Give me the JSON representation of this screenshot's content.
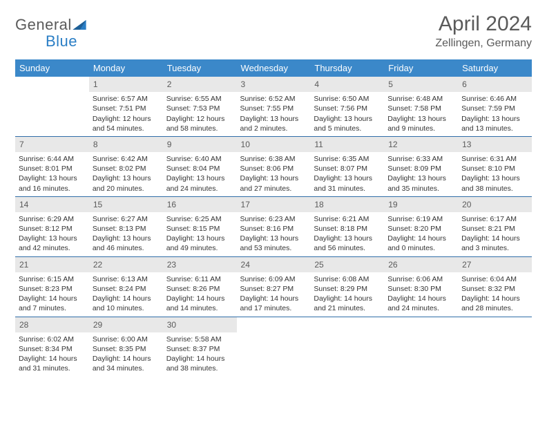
{
  "logo": {
    "text1": "General",
    "text2": "Blue"
  },
  "title": "April 2024",
  "location": "Zellingen, Germany",
  "colors": {
    "header_bg": "#3b88c9",
    "border": "#2f6da8",
    "daynum_bg": "#e8e8e8",
    "text_muted": "#5a5a5a"
  },
  "weekdays": [
    "Sunday",
    "Monday",
    "Tuesday",
    "Wednesday",
    "Thursday",
    "Friday",
    "Saturday"
  ],
  "weeks": [
    [
      {
        "day": "",
        "sunrise": "",
        "sunset": "",
        "daylight": ""
      },
      {
        "day": "1",
        "sunrise": "Sunrise: 6:57 AM",
        "sunset": "Sunset: 7:51 PM",
        "daylight": "Daylight: 12 hours and 54 minutes."
      },
      {
        "day": "2",
        "sunrise": "Sunrise: 6:55 AM",
        "sunset": "Sunset: 7:53 PM",
        "daylight": "Daylight: 12 hours and 58 minutes."
      },
      {
        "day": "3",
        "sunrise": "Sunrise: 6:52 AM",
        "sunset": "Sunset: 7:55 PM",
        "daylight": "Daylight: 13 hours and 2 minutes."
      },
      {
        "day": "4",
        "sunrise": "Sunrise: 6:50 AM",
        "sunset": "Sunset: 7:56 PM",
        "daylight": "Daylight: 13 hours and 5 minutes."
      },
      {
        "day": "5",
        "sunrise": "Sunrise: 6:48 AM",
        "sunset": "Sunset: 7:58 PM",
        "daylight": "Daylight: 13 hours and 9 minutes."
      },
      {
        "day": "6",
        "sunrise": "Sunrise: 6:46 AM",
        "sunset": "Sunset: 7:59 PM",
        "daylight": "Daylight: 13 hours and 13 minutes."
      }
    ],
    [
      {
        "day": "7",
        "sunrise": "Sunrise: 6:44 AM",
        "sunset": "Sunset: 8:01 PM",
        "daylight": "Daylight: 13 hours and 16 minutes."
      },
      {
        "day": "8",
        "sunrise": "Sunrise: 6:42 AM",
        "sunset": "Sunset: 8:02 PM",
        "daylight": "Daylight: 13 hours and 20 minutes."
      },
      {
        "day": "9",
        "sunrise": "Sunrise: 6:40 AM",
        "sunset": "Sunset: 8:04 PM",
        "daylight": "Daylight: 13 hours and 24 minutes."
      },
      {
        "day": "10",
        "sunrise": "Sunrise: 6:38 AM",
        "sunset": "Sunset: 8:06 PM",
        "daylight": "Daylight: 13 hours and 27 minutes."
      },
      {
        "day": "11",
        "sunrise": "Sunrise: 6:35 AM",
        "sunset": "Sunset: 8:07 PM",
        "daylight": "Daylight: 13 hours and 31 minutes."
      },
      {
        "day": "12",
        "sunrise": "Sunrise: 6:33 AM",
        "sunset": "Sunset: 8:09 PM",
        "daylight": "Daylight: 13 hours and 35 minutes."
      },
      {
        "day": "13",
        "sunrise": "Sunrise: 6:31 AM",
        "sunset": "Sunset: 8:10 PM",
        "daylight": "Daylight: 13 hours and 38 minutes."
      }
    ],
    [
      {
        "day": "14",
        "sunrise": "Sunrise: 6:29 AM",
        "sunset": "Sunset: 8:12 PM",
        "daylight": "Daylight: 13 hours and 42 minutes."
      },
      {
        "day": "15",
        "sunrise": "Sunrise: 6:27 AM",
        "sunset": "Sunset: 8:13 PM",
        "daylight": "Daylight: 13 hours and 46 minutes."
      },
      {
        "day": "16",
        "sunrise": "Sunrise: 6:25 AM",
        "sunset": "Sunset: 8:15 PM",
        "daylight": "Daylight: 13 hours and 49 minutes."
      },
      {
        "day": "17",
        "sunrise": "Sunrise: 6:23 AM",
        "sunset": "Sunset: 8:16 PM",
        "daylight": "Daylight: 13 hours and 53 minutes."
      },
      {
        "day": "18",
        "sunrise": "Sunrise: 6:21 AM",
        "sunset": "Sunset: 8:18 PM",
        "daylight": "Daylight: 13 hours and 56 minutes."
      },
      {
        "day": "19",
        "sunrise": "Sunrise: 6:19 AM",
        "sunset": "Sunset: 8:20 PM",
        "daylight": "Daylight: 14 hours and 0 minutes."
      },
      {
        "day": "20",
        "sunrise": "Sunrise: 6:17 AM",
        "sunset": "Sunset: 8:21 PM",
        "daylight": "Daylight: 14 hours and 3 minutes."
      }
    ],
    [
      {
        "day": "21",
        "sunrise": "Sunrise: 6:15 AM",
        "sunset": "Sunset: 8:23 PM",
        "daylight": "Daylight: 14 hours and 7 minutes."
      },
      {
        "day": "22",
        "sunrise": "Sunrise: 6:13 AM",
        "sunset": "Sunset: 8:24 PM",
        "daylight": "Daylight: 14 hours and 10 minutes."
      },
      {
        "day": "23",
        "sunrise": "Sunrise: 6:11 AM",
        "sunset": "Sunset: 8:26 PM",
        "daylight": "Daylight: 14 hours and 14 minutes."
      },
      {
        "day": "24",
        "sunrise": "Sunrise: 6:09 AM",
        "sunset": "Sunset: 8:27 PM",
        "daylight": "Daylight: 14 hours and 17 minutes."
      },
      {
        "day": "25",
        "sunrise": "Sunrise: 6:08 AM",
        "sunset": "Sunset: 8:29 PM",
        "daylight": "Daylight: 14 hours and 21 minutes."
      },
      {
        "day": "26",
        "sunrise": "Sunrise: 6:06 AM",
        "sunset": "Sunset: 8:30 PM",
        "daylight": "Daylight: 14 hours and 24 minutes."
      },
      {
        "day": "27",
        "sunrise": "Sunrise: 6:04 AM",
        "sunset": "Sunset: 8:32 PM",
        "daylight": "Daylight: 14 hours and 28 minutes."
      }
    ],
    [
      {
        "day": "28",
        "sunrise": "Sunrise: 6:02 AM",
        "sunset": "Sunset: 8:34 PM",
        "daylight": "Daylight: 14 hours and 31 minutes."
      },
      {
        "day": "29",
        "sunrise": "Sunrise: 6:00 AM",
        "sunset": "Sunset: 8:35 PM",
        "daylight": "Daylight: 14 hours and 34 minutes."
      },
      {
        "day": "30",
        "sunrise": "Sunrise: 5:58 AM",
        "sunset": "Sunset: 8:37 PM",
        "daylight": "Daylight: 14 hours and 38 minutes."
      },
      {
        "day": "",
        "sunrise": "",
        "sunset": "",
        "daylight": ""
      },
      {
        "day": "",
        "sunrise": "",
        "sunset": "",
        "daylight": ""
      },
      {
        "day": "",
        "sunrise": "",
        "sunset": "",
        "daylight": ""
      },
      {
        "day": "",
        "sunrise": "",
        "sunset": "",
        "daylight": ""
      }
    ]
  ]
}
